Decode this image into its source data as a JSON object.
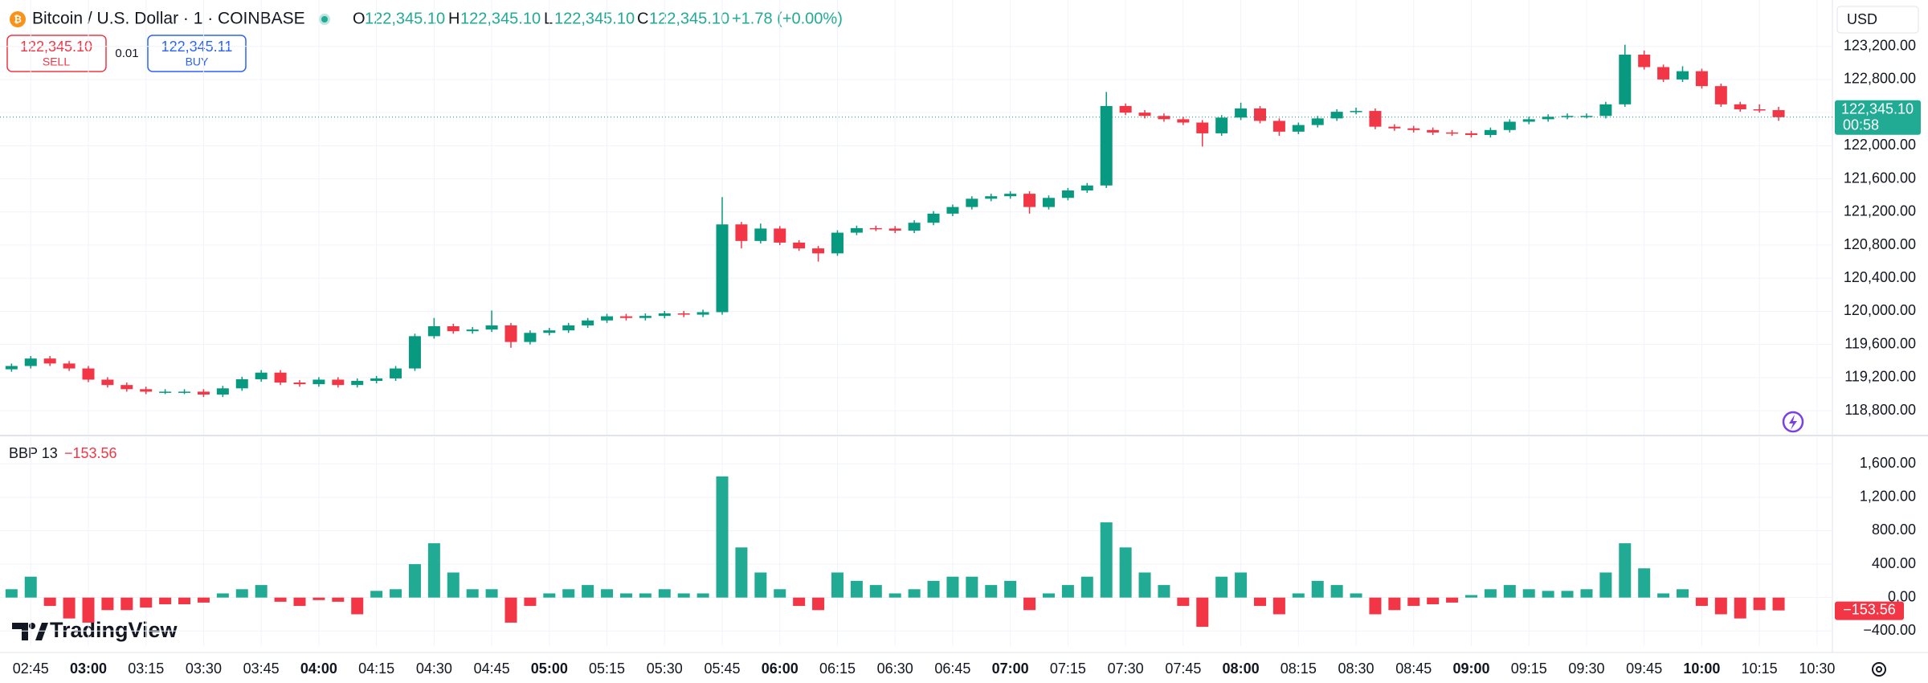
{
  "header": {
    "symbol": "Bitcoin / U.S. Dollar · 1 · COINBASE",
    "ohlc_labels": [
      "O",
      "H",
      "L",
      "C"
    ],
    "ohlc_values": [
      "122,345.10",
      "122,345.10",
      "122,345.10",
      "122,345.10"
    ],
    "change": "+1.78 (+0.00%)"
  },
  "trade": {
    "sell_price": "122,345.10",
    "sell_label": "SELL",
    "quantity": "0.01",
    "buy_price": "122,345.11",
    "buy_label": "BUY"
  },
  "currency": "USD",
  "brand": "TradingView",
  "chart_data": [
    {
      "type": "candlestick",
      "up_color": "#089981",
      "down_color": "#f23645",
      "grid": true,
      "last_price_label": "122,345.10",
      "countdown": "00:58",
      "xlim": [
        "02:37",
        "10:34"
      ],
      "xticks": [
        "02:45",
        "03:00",
        "03:15",
        "03:30",
        "03:45",
        "04:00",
        "04:15",
        "04:30",
        "04:45",
        "05:00",
        "05:15",
        "05:30",
        "05:45",
        "06:00",
        "06:15",
        "06:30",
        "06:45",
        "07:00",
        "07:15",
        "07:30",
        "07:45",
        "08:00",
        "08:15",
        "08:30",
        "08:45",
        "09:00",
        "09:15",
        "09:30",
        "09:45",
        "10:00",
        "10:15",
        "10:30"
      ],
      "ylim": [
        118510,
        123760
      ],
      "yticks": [
        {
          "value": 118800,
          "label": "118,800.00"
        },
        {
          "value": 119200,
          "label": "119,200.00"
        },
        {
          "value": 119600,
          "label": "119,600.00"
        },
        {
          "value": 120000,
          "label": "120,000.00"
        },
        {
          "value": 120400,
          "label": "120,400.00"
        },
        {
          "value": 120800,
          "label": "120,800.00"
        },
        {
          "value": 121200,
          "label": "121,200.00"
        },
        {
          "value": 121600,
          "label": "121,600.00"
        },
        {
          "value": 122000,
          "label": "122,000.00"
        },
        {
          "value": 122400,
          "label": "122,400.00"
        },
        {
          "value": 122800,
          "label": "122,800.00"
        },
        {
          "value": 123200,
          "label": "123,200.00"
        }
      ],
      "x": [
        "02:40",
        "02:45",
        "02:50",
        "02:55",
        "03:00",
        "03:05",
        "03:10",
        "03:15",
        "03:20",
        "03:25",
        "03:30",
        "03:35",
        "03:40",
        "03:45",
        "03:50",
        "03:55",
        "04:00",
        "04:05",
        "04:10",
        "04:15",
        "04:20",
        "04:25",
        "04:30",
        "04:35",
        "04:40",
        "04:45",
        "04:50",
        "04:55",
        "05:00",
        "05:05",
        "05:10",
        "05:15",
        "05:20",
        "05:25",
        "05:30",
        "05:35",
        "05:40",
        "05:45",
        "05:50",
        "05:55",
        "06:00",
        "06:05",
        "06:10",
        "06:15",
        "06:20",
        "06:25",
        "06:30",
        "06:35",
        "06:40",
        "06:45",
        "06:50",
        "06:55",
        "07:00",
        "07:05",
        "07:10",
        "07:15",
        "07:20",
        "07:25",
        "07:30",
        "07:35",
        "07:40",
        "07:45",
        "07:50",
        "07:55",
        "08:00",
        "08:05",
        "08:10",
        "08:15",
        "08:20",
        "08:25",
        "08:30",
        "08:35",
        "08:40",
        "08:45",
        "08:50",
        "08:55",
        "09:00",
        "09:05",
        "09:10",
        "09:15",
        "09:20",
        "09:25",
        "09:30",
        "09:35",
        "09:40",
        "09:45",
        "09:50",
        "09:55",
        "10:00",
        "10:05",
        "10:10",
        "10:15",
        "10:20"
      ],
      "ohlc": [
        [
          119300,
          119370,
          119270,
          119340
        ],
        [
          119340,
          119460,
          119310,
          119430
        ],
        [
          119430,
          119460,
          119340,
          119370
        ],
        [
          119370,
          119400,
          119280,
          119310
        ],
        [
          119310,
          119340,
          119145,
          119175
        ],
        [
          119175,
          119205,
          119080,
          119110
        ],
        [
          119110,
          119140,
          119030,
          119060
        ],
        [
          119060,
          119090,
          119000,
          119030
        ],
        [
          119030,
          119060,
          119000,
          119030
        ],
        [
          119030,
          119060,
          119000,
          119030
        ],
        [
          119030,
          119060,
          118965,
          118995
        ],
        [
          118995,
          119100,
          118965,
          119070
        ],
        [
          119070,
          119210,
          119040,
          119180
        ],
        [
          119180,
          119290,
          119150,
          119260
        ],
        [
          119260,
          119290,
          119110,
          119140
        ],
        [
          119140,
          119170,
          119090,
          119120
        ],
        [
          119120,
          119205,
          119090,
          119175
        ],
        [
          119175,
          119205,
          119080,
          119110
        ],
        [
          119110,
          119190,
          119080,
          119160
        ],
        [
          119160,
          119220,
          119130,
          119190
        ],
        [
          119190,
          119340,
          119160,
          119310
        ],
        [
          119310,
          119730,
          119280,
          119700
        ],
        [
          119700,
          119920,
          119670,
          119820
        ],
        [
          119820,
          119850,
          119730,
          119760
        ],
        [
          119760,
          119810,
          119730,
          119780
        ],
        [
          119780,
          120010,
          119750,
          119830
        ],
        [
          119830,
          119860,
          119560,
          119630
        ],
        [
          119630,
          119770,
          119600,
          119740
        ],
        [
          119740,
          119800,
          119710,
          119770
        ],
        [
          119770,
          119860,
          119740,
          119830
        ],
        [
          119830,
          119920,
          119800,
          119890
        ],
        [
          119890,
          119970,
          119860,
          119940
        ],
        [
          119940,
          119970,
          119890,
          119920
        ],
        [
          119920,
          119975,
          119890,
          119945
        ],
        [
          119945,
          120005,
          119915,
          119975
        ],
        [
          119975,
          120005,
          119930,
          119960
        ],
        [
          119960,
          120020,
          119930,
          119990
        ],
        [
          119990,
          121380,
          119960,
          121050
        ],
        [
          121050,
          121080,
          120760,
          120850
        ],
        [
          120850,
          121060,
          120820,
          121000
        ],
        [
          121000,
          121030,
          120800,
          120830
        ],
        [
          120830,
          120860,
          120730,
          120760
        ],
        [
          120760,
          120790,
          120600,
          120700
        ],
        [
          120700,
          120980,
          120670,
          120950
        ],
        [
          120950,
          121035,
          120920,
          121005
        ],
        [
          121005,
          121035,
          120970,
          121000
        ],
        [
          121000,
          121030,
          120945,
          120975
        ],
        [
          120975,
          121100,
          120945,
          121070
        ],
        [
          121070,
          121210,
          121040,
          121180
        ],
        [
          121180,
          121290,
          121150,
          121260
        ],
        [
          121260,
          121390,
          121230,
          121360
        ],
        [
          121360,
          121420,
          121330,
          121390
        ],
        [
          121390,
          121450,
          121360,
          121420
        ],
        [
          121420,
          121450,
          121180,
          121260
        ],
        [
          121260,
          121400,
          121230,
          121370
        ],
        [
          121370,
          121490,
          121340,
          121460
        ],
        [
          121460,
          121550,
          121430,
          121520
        ],
        [
          121520,
          122650,
          121490,
          122480
        ],
        [
          122480,
          122510,
          122370,
          122400
        ],
        [
          122400,
          122430,
          122330,
          122360
        ],
        [
          122360,
          122390,
          122290,
          122320
        ],
        [
          122320,
          122350,
          122250,
          122280
        ],
        [
          122280,
          122310,
          121990,
          122150
        ],
        [
          122150,
          122370,
          122120,
          122340
        ],
        [
          122340,
          122520,
          122310,
          122450
        ],
        [
          122450,
          122480,
          122270,
          122300
        ],
        [
          122300,
          122330,
          122120,
          122170
        ],
        [
          122170,
          122280,
          122140,
          122250
        ],
        [
          122250,
          122360,
          122220,
          122330
        ],
        [
          122330,
          122440,
          122300,
          122410
        ],
        [
          122410,
          122460,
          122380,
          122420
        ],
        [
          122420,
          122450,
          122200,
          122230
        ],
        [
          122230,
          122260,
          122180,
          122210
        ],
        [
          122210,
          122240,
          122160,
          122190
        ],
        [
          122190,
          122220,
          122130,
          122160
        ],
        [
          122160,
          122190,
          122120,
          122150
        ],
        [
          122150,
          122180,
          122100,
          122130
        ],
        [
          122130,
          122220,
          122100,
          122190
        ],
        [
          122190,
          122320,
          122160,
          122290
        ],
        [
          122290,
          122350,
          122260,
          122320
        ],
        [
          122320,
          122380,
          122290,
          122350
        ],
        [
          122350,
          122390,
          122320,
          122360
        ],
        [
          122360,
          122390,
          122330,
          122360
        ],
        [
          122360,
          122530,
          122330,
          122500
        ],
        [
          122500,
          123220,
          122470,
          123100
        ],
        [
          123100,
          123150,
          122920,
          122950
        ],
        [
          122950,
          122980,
          122770,
          122800
        ],
        [
          122800,
          122960,
          122770,
          122900
        ],
        [
          122900,
          122930,
          122690,
          122720
        ],
        [
          122720,
          122750,
          122470,
          122500
        ],
        [
          122500,
          122530,
          122410,
          122440
        ],
        [
          122440,
          122500,
          122400,
          122430
        ],
        [
          122430,
          122470,
          122300,
          122345.1
        ]
      ]
    },
    {
      "type": "histogram",
      "title": "BBP 13",
      "last_label": "−153.56",
      "up_color": "#22ab94",
      "down_color": "#f23645",
      "grid": true,
      "ylim": [
        -580,
        1920
      ],
      "yticks": [
        {
          "value": -400,
          "label": "−400.00"
        },
        {
          "value": 0,
          "label": "0.00"
        },
        {
          "value": 400,
          "label": "400.00"
        },
        {
          "value": 800,
          "label": "800.00"
        },
        {
          "value": 1200,
          "label": "1,200.00"
        },
        {
          "value": 1600,
          "label": "1,600.00"
        }
      ],
      "values": [
        100,
        250,
        -100,
        -250,
        -300,
        -150,
        -150,
        -120,
        -80,
        -80,
        -60,
        50,
        100,
        150,
        -50,
        -100,
        -30,
        -50,
        -200,
        80,
        100,
        400,
        650,
        300,
        100,
        100,
        -300,
        -100,
        50,
        100,
        150,
        100,
        50,
        50,
        100,
        50,
        50,
        1450,
        600,
        300,
        100,
        -100,
        -150,
        300,
        200,
        150,
        50,
        100,
        200,
        250,
        250,
        150,
        200,
        -150,
        50,
        150,
        250,
        900,
        600,
        300,
        150,
        -100,
        -350,
        250,
        300,
        -100,
        -200,
        50,
        200,
        150,
        50,
        -200,
        -150,
        -100,
        -80,
        -60,
        30,
        100,
        150,
        100,
        80,
        80,
        100,
        300,
        650,
        350,
        50,
        100,
        -100,
        -200,
        -250,
        -150,
        -153.56
      ]
    }
  ]
}
